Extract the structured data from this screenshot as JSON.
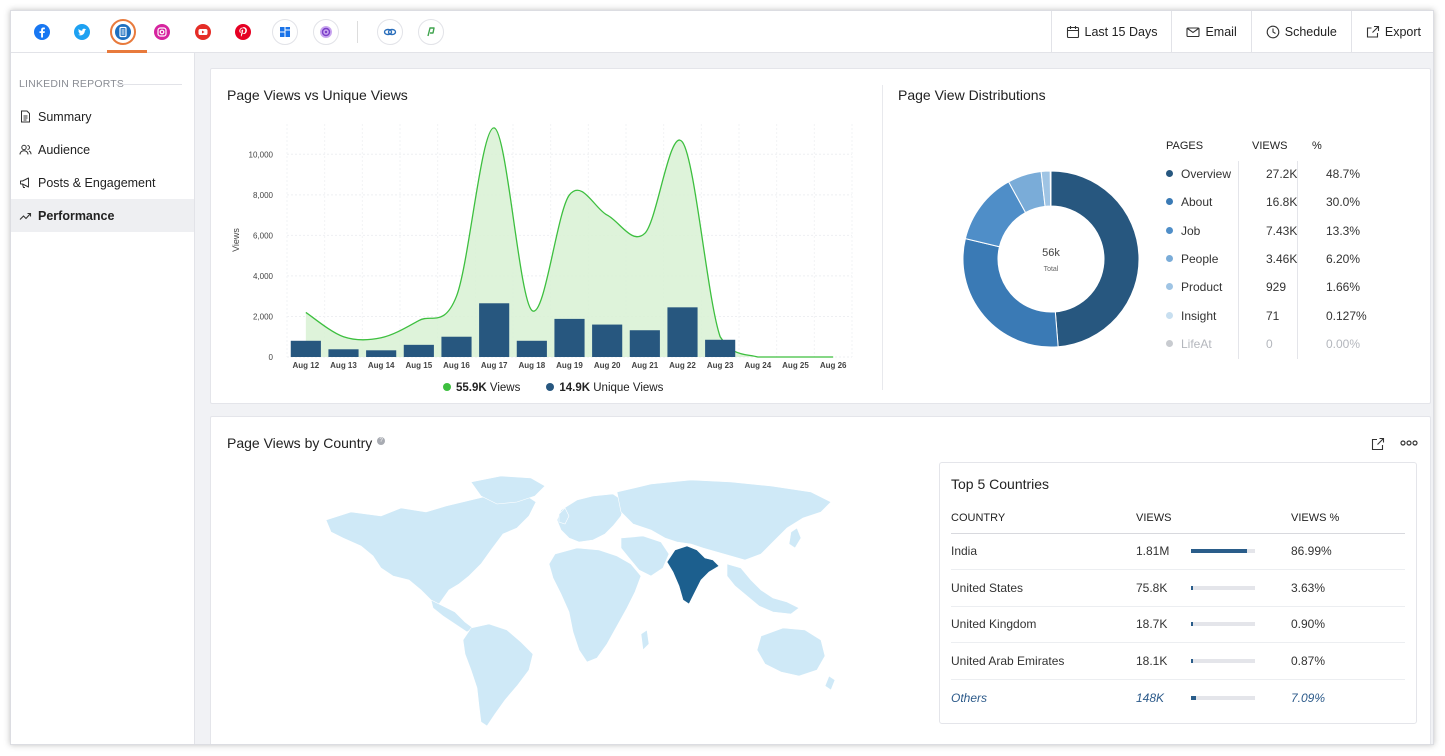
{
  "topbar": {
    "networks": [
      {
        "icon": "facebook-icon",
        "color": "#1877f2"
      },
      {
        "icon": "twitter-icon",
        "color": "#1da1f2"
      },
      {
        "icon": "linkedin-pages-icon",
        "color": "#1e6fbf",
        "active": true
      },
      {
        "icon": "instagram-icon",
        "color": "#d6249f"
      },
      {
        "icon": "youtube-icon",
        "color": "#e52d27"
      },
      {
        "icon": "pinterest-icon",
        "color": "#e60023"
      },
      {
        "icon": "google-business-icon",
        "color": "#1a73e8"
      },
      {
        "icon": "threads-icon",
        "color": "#9b5de5"
      },
      {
        "icon": "zoho-social-icon",
        "color": "#2a6ebb"
      },
      {
        "icon": "custom-channel-icon",
        "color": "#3fa34d"
      }
    ],
    "actions": [
      {
        "label": "Last 15 Days",
        "icon": "calendar-icon"
      },
      {
        "label": "Email",
        "icon": "mail-icon"
      },
      {
        "label": "Schedule",
        "icon": "clock-icon"
      },
      {
        "label": "Export",
        "icon": "export-icon"
      }
    ]
  },
  "sidebar": {
    "heading": "LINKEDIN REPORTS",
    "items": [
      {
        "label": "Summary",
        "icon": "document-icon"
      },
      {
        "label": "Audience",
        "icon": "users-icon"
      },
      {
        "label": "Posts & Engagement",
        "icon": "megaphone-icon"
      },
      {
        "label": "Performance",
        "icon": "trend-icon",
        "active": true
      }
    ]
  },
  "views_chart": {
    "title": "Page Views vs Unique Views",
    "y_label": "Views",
    "y_ticks": [
      "10,000",
      "8,000",
      "6,000",
      "4,000",
      "2,000",
      "0"
    ],
    "legend": [
      {
        "value": "55.9K",
        "label": "Views",
        "color": "#3dbf3f"
      },
      {
        "value": "14.9K",
        "label": "Unique Views",
        "color": "#27577f"
      }
    ]
  },
  "chart_data": {
    "type": "area",
    "title": "Page Views vs Unique Views",
    "ylabel": "Views",
    "ylim": [
      0,
      11000
    ],
    "categories": [
      "Aug 12",
      "Aug 13",
      "Aug 14",
      "Aug 15",
      "Aug 16",
      "Aug 17",
      "Aug 18",
      "Aug 19",
      "Aug 20",
      "Aug 21",
      "Aug 22",
      "Aug 23",
      "Aug 24",
      "Aug 25",
      "Aug 26"
    ],
    "series": [
      {
        "name": "Views",
        "style": "area",
        "color": "#3dbf3f",
        "values": [
          2200,
          1000,
          950,
          1800,
          3000,
          11300,
          2300,
          8000,
          7000,
          6100,
          10600,
          1000,
          0,
          0,
          0
        ]
      },
      {
        "name": "Unique Views",
        "style": "bar",
        "color": "#27577f",
        "values": [
          800,
          380,
          330,
          600,
          1000,
          2650,
          800,
          1880,
          1600,
          1320,
          2450,
          850,
          0,
          0,
          0
        ]
      }
    ],
    "grid": true
  },
  "distribution": {
    "title": "Page View Distributions",
    "center_value": "56k",
    "center_label": "Total",
    "headers": [
      "PAGES",
      "VIEWS",
      "%"
    ],
    "rows": [
      {
        "page": "Overview",
        "views": "27.2K",
        "pct": "48.7%",
        "share": 48.7,
        "color": "#27577f"
      },
      {
        "page": "About",
        "views": "16.8K",
        "pct": "30.0%",
        "share": 30.0,
        "color": "#3a7ab5"
      },
      {
        "page": "Job",
        "views": "7.43K",
        "pct": "13.3%",
        "share": 13.3,
        "color": "#4f8ec8"
      },
      {
        "page": "People",
        "views": "3.46K",
        "pct": "6.20%",
        "share": 6.2,
        "color": "#7aacd8"
      },
      {
        "page": "Product",
        "views": "929",
        "pct": "1.66%",
        "share": 1.66,
        "color": "#9fc4e4"
      },
      {
        "page": "Insight",
        "views": "71",
        "pct": "0.127%",
        "share": 0.127,
        "color": "#c8dff0"
      },
      {
        "page": "LifeAt",
        "views": "0",
        "pct": "0.00%",
        "share": 0,
        "color": "#c8cbd0",
        "muted": true
      }
    ]
  },
  "country": {
    "title": "Page Views by Country",
    "help_icon": "question-icon",
    "highlighted_country": "India",
    "map_fill": "#cfe9f7",
    "highlight_fill": "#1c5f8e",
    "top5": {
      "title": "Top 5 Countries",
      "headers": [
        "COUNTRY",
        "VIEWS",
        "VIEWS %"
      ],
      "rows": [
        {
          "country": "India",
          "views": "1.81M",
          "pct": "86.99%",
          "share": 86.99
        },
        {
          "country": "United States",
          "views": "75.8K",
          "pct": "3.63%",
          "share": 3.63
        },
        {
          "country": "United Kingdom",
          "views": "18.7K",
          "pct": "0.90%",
          "share": 0.9
        },
        {
          "country": "United Arab Emirates",
          "views": "18.1K",
          "pct": "0.87%",
          "share": 0.87
        },
        {
          "country": "Others",
          "views": "148K",
          "pct": "7.09%",
          "share": 7.09,
          "others": true
        }
      ]
    }
  }
}
